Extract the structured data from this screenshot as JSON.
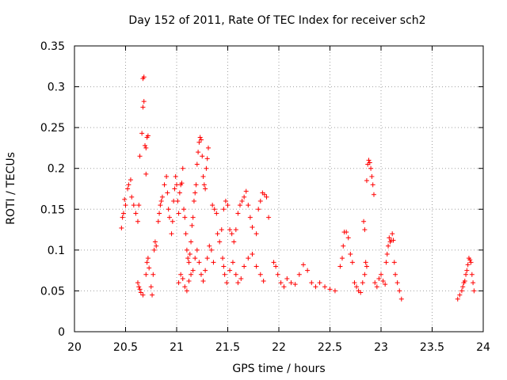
{
  "chart_data": {
    "type": "scatter",
    "title": "Day 152 of 2011, Rate Of TEC Index for receiver sch2",
    "xlabel": "GPS time / hours",
    "ylabel": "ROTI / TECUs",
    "xlim": [
      20,
      24
    ],
    "ylim": [
      0,
      0.35
    ],
    "x_ticks": [
      "20",
      "20.5",
      "21",
      "21.5",
      "22",
      "22.5",
      "23",
      "23.5",
      "24"
    ],
    "y_ticks": [
      "0",
      "0.05",
      "0.1",
      "0.15",
      "0.2",
      "0.25",
      "0.3",
      "0.35"
    ],
    "grid": true,
    "marker": "+",
    "series_color": "#ff0000",
    "series": [
      {
        "values": [
          [
            20.46,
            0.127
          ],
          [
            20.47,
            0.14
          ],
          [
            20.48,
            0.145
          ],
          [
            20.49,
            0.162
          ],
          [
            20.5,
            0.155
          ],
          [
            20.52,
            0.175
          ],
          [
            20.53,
            0.18
          ],
          [
            20.55,
            0.186
          ],
          [
            20.56,
            0.165
          ],
          [
            20.58,
            0.155
          ],
          [
            20.6,
            0.145
          ],
          [
            20.62,
            0.135
          ],
          [
            20.63,
            0.155
          ],
          [
            20.64,
            0.215
          ],
          [
            20.66,
            0.243
          ],
          [
            20.67,
            0.275
          ],
          [
            20.68,
            0.282
          ],
          [
            20.67,
            0.31
          ],
          [
            20.68,
            0.312
          ],
          [
            20.69,
            0.228
          ],
          [
            20.7,
            0.225
          ],
          [
            20.71,
            0.238
          ],
          [
            20.72,
            0.24
          ],
          [
            20.7,
            0.193
          ],
          [
            20.62,
            0.06
          ],
          [
            20.63,
            0.055
          ],
          [
            20.64,
            0.052
          ],
          [
            20.65,
            0.048
          ],
          [
            20.67,
            0.045
          ],
          [
            20.7,
            0.07
          ],
          [
            20.71,
            0.085
          ],
          [
            20.72,
            0.09
          ],
          [
            20.73,
            0.078
          ],
          [
            20.75,
            0.055
          ],
          [
            20.76,
            0.045
          ],
          [
            20.77,
            0.07
          ],
          [
            20.78,
            0.1
          ],
          [
            20.79,
            0.11
          ],
          [
            20.8,
            0.105
          ],
          [
            20.82,
            0.135
          ],
          [
            20.83,
            0.145
          ],
          [
            20.84,
            0.155
          ],
          [
            20.85,
            0.16
          ],
          [
            20.86,
            0.165
          ],
          [
            20.88,
            0.18
          ],
          [
            20.9,
            0.19
          ],
          [
            20.91,
            0.17
          ],
          [
            20.92,
            0.15
          ],
          [
            20.93,
            0.14
          ],
          [
            20.95,
            0.12
          ],
          [
            20.96,
            0.135
          ],
          [
            20.97,
            0.16
          ],
          [
            20.98,
            0.175
          ],
          [
            20.99,
            0.19
          ],
          [
            21.0,
            0.18
          ],
          [
            21.01,
            0.16
          ],
          [
            21.02,
            0.145
          ],
          [
            21.03,
            0.17
          ],
          [
            21.04,
            0.18
          ],
          [
            21.05,
            0.182
          ],
          [
            21.06,
            0.2
          ],
          [
            21.07,
            0.15
          ],
          [
            21.08,
            0.14
          ],
          [
            21.09,
            0.12
          ],
          [
            21.1,
            0.1
          ],
          [
            21.11,
            0.09
          ],
          [
            21.12,
            0.085
          ],
          [
            21.13,
            0.095
          ],
          [
            21.14,
            0.11
          ],
          [
            21.15,
            0.13
          ],
          [
            21.16,
            0.14
          ],
          [
            21.17,
            0.16
          ],
          [
            21.18,
            0.17
          ],
          [
            21.19,
            0.18
          ],
          [
            21.2,
            0.205
          ],
          [
            21.21,
            0.22
          ],
          [
            21.22,
            0.232
          ],
          [
            21.23,
            0.238
          ],
          [
            21.24,
            0.235
          ],
          [
            21.25,
            0.215
          ],
          [
            21.26,
            0.19
          ],
          [
            21.27,
            0.18
          ],
          [
            21.28,
            0.175
          ],
          [
            21.29,
            0.2
          ],
          [
            21.3,
            0.212
          ],
          [
            21.31,
            0.225
          ],
          [
            21.02,
            0.06
          ],
          [
            21.04,
            0.07
          ],
          [
            21.06,
            0.065
          ],
          [
            21.08,
            0.055
          ],
          [
            21.1,
            0.05
          ],
          [
            21.12,
            0.062
          ],
          [
            21.14,
            0.07
          ],
          [
            21.16,
            0.075
          ],
          [
            21.18,
            0.09
          ],
          [
            21.2,
            0.1
          ],
          [
            21.22,
            0.085
          ],
          [
            21.24,
            0.07
          ],
          [
            21.26,
            0.062
          ],
          [
            21.28,
            0.075
          ],
          [
            21.3,
            0.09
          ],
          [
            21.32,
            0.105
          ],
          [
            21.34,
            0.1
          ],
          [
            21.36,
            0.085
          ],
          [
            21.35,
            0.155
          ],
          [
            21.37,
            0.15
          ],
          [
            21.39,
            0.145
          ],
          [
            21.4,
            0.12
          ],
          [
            21.42,
            0.11
          ],
          [
            21.44,
            0.125
          ],
          [
            21.46,
            0.15
          ],
          [
            21.48,
            0.16
          ],
          [
            21.5,
            0.155
          ],
          [
            21.52,
            0.125
          ],
          [
            21.54,
            0.12
          ],
          [
            21.56,
            0.11
          ],
          [
            21.58,
            0.125
          ],
          [
            21.6,
            0.145
          ],
          [
            21.62,
            0.155
          ],
          [
            21.64,
            0.16
          ],
          [
            21.66,
            0.165
          ],
          [
            21.68,
            0.172
          ],
          [
            21.7,
            0.155
          ],
          [
            21.72,
            0.14
          ],
          [
            21.74,
            0.128
          ],
          [
            21.45,
            0.09
          ],
          [
            21.46,
            0.08
          ],
          [
            21.47,
            0.07
          ],
          [
            21.49,
            0.06
          ],
          [
            21.52,
            0.075
          ],
          [
            21.55,
            0.085
          ],
          [
            21.58,
            0.07
          ],
          [
            21.6,
            0.06
          ],
          [
            21.63,
            0.065
          ],
          [
            21.66,
            0.08
          ],
          [
            21.7,
            0.09
          ],
          [
            21.74,
            0.095
          ],
          [
            21.78,
            0.08
          ],
          [
            21.82,
            0.07
          ],
          [
            21.85,
            0.062
          ],
          [
            21.78,
            0.12
          ],
          [
            21.8,
            0.15
          ],
          [
            21.82,
            0.16
          ],
          [
            21.84,
            0.17
          ],
          [
            21.86,
            0.168
          ],
          [
            21.88,
            0.165
          ],
          [
            21.9,
            0.14
          ],
          [
            21.95,
            0.085
          ],
          [
            21.97,
            0.08
          ],
          [
            21.99,
            0.07
          ],
          [
            22.02,
            0.06
          ],
          [
            22.05,
            0.055
          ],
          [
            22.08,
            0.065
          ],
          [
            22.12,
            0.06
          ],
          [
            22.16,
            0.058
          ],
          [
            22.2,
            0.07
          ],
          [
            22.24,
            0.082
          ],
          [
            22.28,
            0.075
          ],
          [
            22.32,
            0.06
          ],
          [
            22.36,
            0.055
          ],
          [
            22.4,
            0.06
          ],
          [
            22.45,
            0.055
          ],
          [
            22.5,
            0.052
          ],
          [
            22.55,
            0.05
          ],
          [
            22.6,
            0.08
          ],
          [
            22.62,
            0.09
          ],
          [
            22.63,
            0.105
          ],
          [
            22.64,
            0.122
          ],
          [
            22.66,
            0.122
          ],
          [
            22.68,
            0.115
          ],
          [
            22.7,
            0.095
          ],
          [
            22.72,
            0.085
          ],
          [
            22.74,
            0.06
          ],
          [
            22.76,
            0.055
          ],
          [
            22.78,
            0.05
          ],
          [
            22.8,
            0.048
          ],
          [
            22.82,
            0.06
          ],
          [
            22.84,
            0.07
          ],
          [
            22.85,
            0.085
          ],
          [
            22.86,
            0.08
          ],
          [
            22.83,
            0.135
          ],
          [
            22.84,
            0.125
          ],
          [
            22.86,
            0.185
          ],
          [
            22.87,
            0.205
          ],
          [
            22.88,
            0.21
          ],
          [
            22.89,
            0.207
          ],
          [
            22.9,
            0.2
          ],
          [
            22.91,
            0.19
          ],
          [
            22.92,
            0.18
          ],
          [
            22.93,
            0.168
          ],
          [
            22.94,
            0.06
          ],
          [
            22.96,
            0.055
          ],
          [
            22.98,
            0.065
          ],
          [
            23.0,
            0.07
          ],
          [
            23.02,
            0.062
          ],
          [
            23.04,
            0.058
          ],
          [
            23.05,
            0.085
          ],
          [
            23.06,
            0.095
          ],
          [
            23.07,
            0.105
          ],
          [
            23.08,
            0.115
          ],
          [
            23.09,
            0.11
          ],
          [
            23.1,
            0.112
          ],
          [
            23.11,
            0.12
          ],
          [
            23.12,
            0.112
          ],
          [
            23.13,
            0.085
          ],
          [
            23.14,
            0.07
          ],
          [
            23.16,
            0.06
          ],
          [
            23.18,
            0.05
          ],
          [
            23.2,
            0.04
          ],
          [
            23.75,
            0.04
          ],
          [
            23.77,
            0.045
          ],
          [
            23.79,
            0.05
          ],
          [
            23.8,
            0.055
          ],
          [
            23.81,
            0.06
          ],
          [
            23.82,
            0.062
          ],
          [
            23.83,
            0.07
          ],
          [
            23.84,
            0.075
          ],
          [
            23.85,
            0.082
          ],
          [
            23.86,
            0.09
          ],
          [
            23.87,
            0.088
          ],
          [
            23.88,
            0.085
          ],
          [
            23.89,
            0.07
          ],
          [
            23.9,
            0.06
          ],
          [
            23.91,
            0.05
          ]
        ]
      }
    ]
  }
}
